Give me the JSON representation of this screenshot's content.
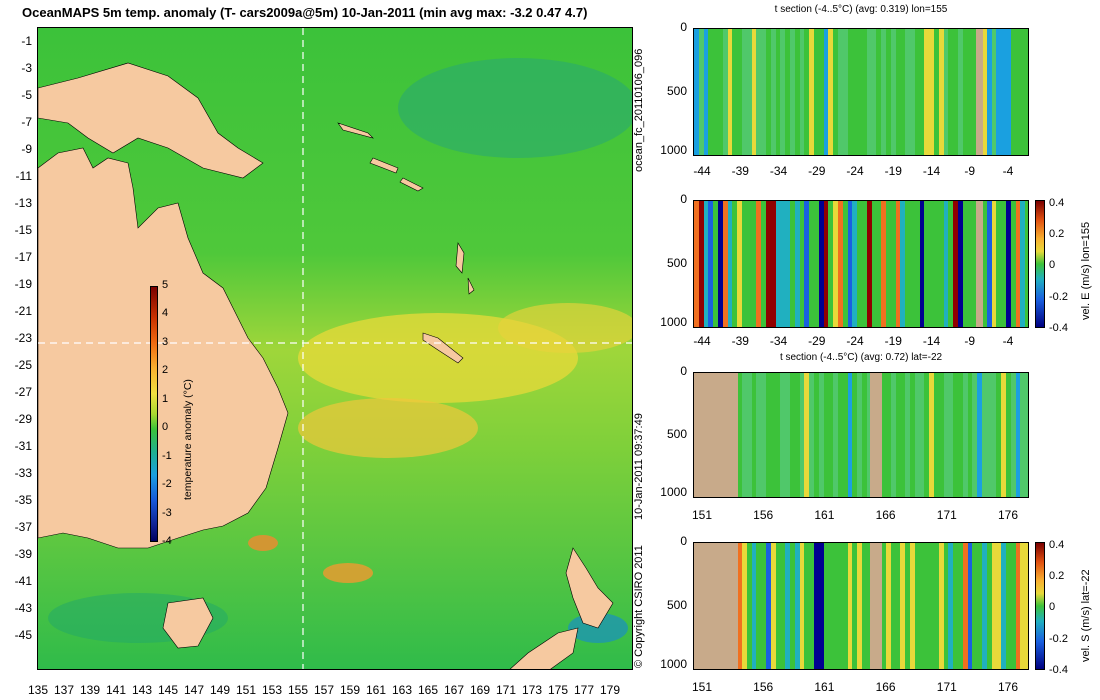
{
  "main_map": {
    "title": "OceanMAPS 5m temp. anomaly (T- cars2009a@5m) 10-Jan-2011 (min avg max: -3.2 0.47 4.7)",
    "lat_ticks": [
      "-1",
      "-3",
      "-5",
      "-7",
      "-9",
      "-11",
      "-13",
      "-15",
      "-17",
      "-19",
      "-21",
      "-23",
      "-25",
      "-27",
      "-29",
      "-31",
      "-33",
      "-35",
      "-37",
      "-39",
      "-41",
      "-43",
      "-45"
    ],
    "lon_ticks": [
      "135",
      "137",
      "139",
      "141",
      "143",
      "145",
      "147",
      "149",
      "151",
      "153",
      "155",
      "157",
      "159",
      "161",
      "163",
      "165",
      "167",
      "169",
      "171",
      "173",
      "175",
      "177",
      "179"
    ],
    "colorbar": {
      "label": "temperature anomaly (°C)",
      "ticks": [
        "5",
        "4",
        "3",
        "2",
        "1",
        "0",
        "-1",
        "-2",
        "-3",
        "-4"
      ],
      "min": -4,
      "max": 5
    },
    "crosshair": {
      "lon": 155,
      "lat": -22
    }
  },
  "sections": [
    {
      "id": "t-lon",
      "subtitle": "t section (-4..5°C) (avg: 0.319) lon=155",
      "yticks": [
        "0",
        "500",
        "1000"
      ],
      "xticks": [
        "-44",
        "-39",
        "-34",
        "-29",
        "-24",
        "-19",
        "-14",
        "-9",
        "-4"
      ],
      "colorbar": null
    },
    {
      "id": "u-lon",
      "subtitle": "",
      "yticks": [
        "0",
        "500",
        "1000"
      ],
      "xticks": [
        "-44",
        "-39",
        "-34",
        "-29",
        "-24",
        "-19",
        "-14",
        "-9",
        "-4"
      ],
      "colorbar": {
        "label": "vel. E (m/s) lon=155",
        "ticks": [
          "0.4",
          "0.2",
          "0",
          "-0.2",
          "-0.4"
        ]
      }
    },
    {
      "id": "t-lat",
      "subtitle": "t section (-4..5°C) (avg: 0.72) lat=-22",
      "yticks": [
        "0",
        "500",
        "1000"
      ],
      "xticks": [
        "151",
        "156",
        "161",
        "166",
        "171",
        "176"
      ],
      "colorbar": null
    },
    {
      "id": "v-lat",
      "subtitle": "",
      "yticks": [
        "0",
        "500",
        "1000"
      ],
      "xticks": [
        "151",
        "156",
        "161",
        "166",
        "171",
        "176"
      ],
      "colorbar": {
        "label": "vel. S (m/s) lat=-22",
        "ticks": [
          "0.4",
          "0.2",
          "0",
          "-0.2",
          "-0.4"
        ]
      }
    }
  ],
  "side_labels": {
    "run_id": "ocean_fc_20110106_096",
    "timestamp": "10-Jan-2011 09:37:49",
    "copyright": "© Copyright CSIRO 2011"
  },
  "colors": {
    "land": "#f6c9a0",
    "section_land": "#c8aa8a",
    "ocean_base": "#2ec53a",
    "crosshair": "#ffffff"
  }
}
